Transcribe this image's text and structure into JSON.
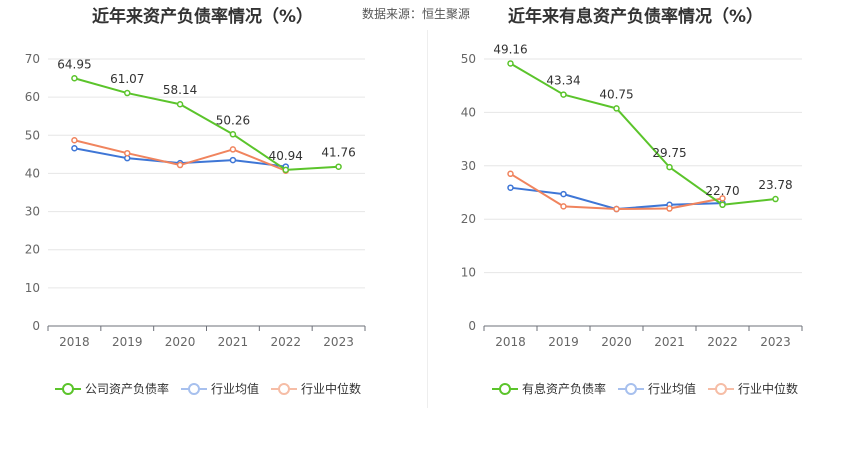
{
  "source_text": "数据来源：恒生聚源",
  "chart_data": [
    {
      "type": "line",
      "title": "近年来资产负债率情况（%）",
      "categories": [
        "2018",
        "2019",
        "2020",
        "2021",
        "2022",
        "2023"
      ],
      "ylim": [
        0,
        70
      ],
      "yticks": [
        "0",
        "10",
        "20",
        "30",
        "40",
        "50",
        "60",
        "70"
      ],
      "grid": true,
      "legend_position": "bottom",
      "series": [
        {
          "name": "公司资产负债率",
          "color": "#5bc42b",
          "labeled": true,
          "values": [
            64.95,
            61.07,
            58.14,
            50.26,
            40.94,
            41.76
          ]
        },
        {
          "name": "行业均值",
          "color": "#3e76d6",
          "labeled": false,
          "values": [
            46.6,
            44.0,
            42.7,
            43.5,
            41.8,
            null
          ]
        },
        {
          "name": "行业中位数",
          "color": "#f0845e",
          "labeled": false,
          "values": [
            48.7,
            45.3,
            42.2,
            46.3,
            40.7,
            null
          ]
        }
      ]
    },
    {
      "type": "line",
      "title": "近年来有息资产负债率情况（%）",
      "categories": [
        "2018",
        "2019",
        "2020",
        "2021",
        "2022",
        "2023"
      ],
      "ylim": [
        0,
        50
      ],
      "yticks": [
        "0",
        "10",
        "20",
        "30",
        "40",
        "50"
      ],
      "grid": true,
      "legend_position": "bottom",
      "series": [
        {
          "name": "有息资产负债率",
          "color": "#5bc42b",
          "labeled": true,
          "values": [
            49.16,
            43.34,
            40.75,
            29.75,
            22.7,
            23.78
          ]
        },
        {
          "name": "行业均值",
          "color": "#3e76d6",
          "labeled": false,
          "values": [
            25.9,
            24.7,
            21.9,
            22.7,
            23.0,
            null
          ]
        },
        {
          "name": "行业中位数",
          "color": "#f0845e",
          "labeled": false,
          "values": [
            28.5,
            22.4,
            21.9,
            22.0,
            23.9,
            null
          ]
        }
      ]
    }
  ]
}
